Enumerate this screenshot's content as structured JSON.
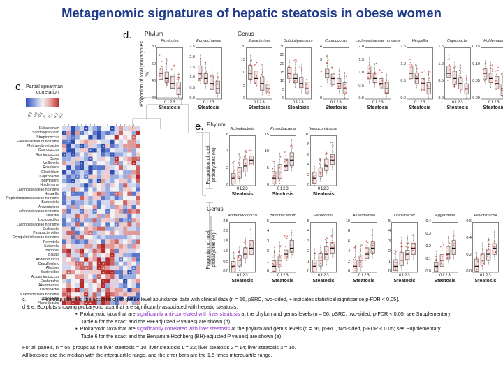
{
  "slide_title": "Metagenomic signatures of hepatic steatosis in obese women",
  "panels": {
    "c": {
      "letter": "c.",
      "legend_title_1": "Partial spearman",
      "legend_title_2": "correlation",
      "scale_ticks": [
        "-0.3",
        "-0.2",
        "-0.1",
        "0",
        "0.1",
        "0.2",
        "0.3"
      ],
      "genera": [
        "Eubacterium",
        "Subdoligranulum",
        "Streptococcus",
        "Faecalibacterium no name",
        "Methanobrevibacter",
        "Coprococcus",
        "Ruminococcus",
        "Dorea",
        "Veillonella",
        "Roseburia",
        "Clostridium",
        "Coprobacter",
        "Butyrivibrio",
        "Holdemania",
        "Lachnospiraceae no name",
        "Hespellia",
        "Peptostreptococcaceae no name",
        "Barnesiella",
        "Anaerostipes",
        "Lachnospiraceae no name",
        "Dialister",
        "Lactobacillus",
        "Lachnospiraceae no name",
        "Collinsella",
        "Parabacteroides",
        "Erysipelotrichaceae no name",
        "Prevotella",
        "Sutterella",
        "Bilophila",
        "Blautia",
        "Anaerotruncus",
        "Desulfovibrio",
        "Alistipes",
        "Bacteroides",
        "Acidaminococcus",
        "Escherichia",
        "Akkermansia",
        "Oscillibacter",
        "Burkholderiales no name",
        "Odoribacter",
        "Flavonifractor"
      ]
    },
    "d": {
      "letter": "d.",
      "phylum_label": "Phylum",
      "genus_label": "Genus",
      "y_label": "Proportion of total prokaryotes (%)",
      "x_label": "Steatosis",
      "x_ticks": "0123",
      "plots": [
        {
          "name": "Firmicutes",
          "ticks": [
            "80",
            "60",
            "40",
            "20"
          ]
        },
        {
          "name": "Euryarchaeota",
          "ticks": [
            "2.5",
            "2.0",
            "1.5",
            "1.0",
            "0.5",
            "0.0"
          ]
        },
        {
          "name": "Eubacterium",
          "ticks": [
            "20",
            "15",
            "10",
            "5",
            "0"
          ]
        },
        {
          "name": "Subdoligranulum",
          "ticks": [
            "30",
            "25",
            "20",
            "15",
            "10",
            "5",
            "0"
          ]
        },
        {
          "name": "Coprococcus",
          "ticks": [
            "4",
            "3",
            "2",
            "1",
            "0"
          ]
        },
        {
          "name": "Lachnospiraceae no name",
          "ticks": [
            "2.0",
            "1.5",
            "1.0",
            "0.5",
            "0.0"
          ]
        },
        {
          "name": "Hespellia",
          "ticks": [
            "1.5",
            "1.0",
            "0.5",
            "0.0"
          ]
        },
        {
          "name": "Coprobacter",
          "ticks": [
            "1.5",
            "1.0",
            "0.5",
            "0.0"
          ]
        },
        {
          "name": "Holdemania",
          "ticks": [
            "0.15",
            "0.10",
            "0.05",
            "0.00"
          ]
        }
      ]
    },
    "e": {
      "letter": "e.",
      "phylum_label": "Phylum",
      "genus_label": "Genus",
      "y_label": "Proportion of total prokaryotes (%)",
      "x_label": "Steatosis",
      "x_ticks": "0123",
      "phylum_plots": [
        {
          "name": "Actinobacteria",
          "ticks": [
            "6",
            "4",
            "2",
            "0"
          ]
        },
        {
          "name": "Proteobacteria",
          "ticks": [
            "15",
            "10",
            "5",
            "0"
          ]
        },
        {
          "name": "Verrucomicrobia",
          "ticks": [
            "10",
            "8",
            "6",
            "4",
            "2",
            "0"
          ]
        }
      ],
      "genus_plots": [
        {
          "name": "Acidaminococcus",
          "ticks": [
            "2.5",
            "2.0",
            "1.5",
            "1.0",
            "0.5",
            "0.0"
          ]
        },
        {
          "name": "Bifidobacterium",
          "ticks": [
            "5",
            "4",
            "3",
            "2",
            "1",
            "0"
          ]
        },
        {
          "name": "Escherichia",
          "ticks": [
            "5",
            "4",
            "3",
            "2",
            "1",
            "0"
          ]
        },
        {
          "name": "Akkermansia",
          "ticks": [
            "10",
            "8",
            "6",
            "4",
            "2",
            "0"
          ]
        },
        {
          "name": "Oscillibacter",
          "ticks": [
            "5",
            "4",
            "3",
            "2",
            "1",
            "0"
          ]
        },
        {
          "name": "Eggerthella",
          "ticks": [
            "0.4",
            "0.3",
            "0.2",
            "0.1",
            "0.0"
          ]
        },
        {
          "name": "Flavonifractor",
          "ticks": [
            "0.6",
            "0.4",
            "0.2",
            "0.0"
          ]
        }
      ]
    }
  },
  "caption": {
    "c_label": "c.",
    "c_text": "Heatmap showing the association of genus-level abundance data with clinical data (n = 56, pSRC, two-sided, + indicates statistical significance p-FDR < 0.05).",
    "de_text": "d & e. Boxplots showing prokaryotic taxa that are significantly associated with hepatic steatosis.",
    "bullet1_pre": "Prokaryotic taxa that are ",
    "bullet1_hl": "significantly anti-correlated with liver steatosis",
    "bullet1_post": " at the phylum and genus levels (n = 56, pSRC, two-sided, p-FDR < 0.05; see Supplementary",
    "bullet1_line2": "Table 6 for the exact and the BH-adjusted P values) are shown (d).",
    "bullet2_pre": "Prokaryotic taxa that are ",
    "bullet2_hl": "significantly correlated with liver steatosis",
    "bullet2_post": " at the phylum and genus levels (n = 56, pSRC, two-sided, p-FDR < 0.05; see Supplementary",
    "bullet2_line2": "Table 6 for the exact and the Benjamini-Hochberg (BH)-adjusted P values) are shown (e).",
    "footer1": "For all panels, n = 56, groups as no liver steatosis = 10; liver steatosis 1 = 22; liver steatosis 2 = 14; liver steatosis 3 = 10.",
    "footer2": "All boxplots are the median with the interquartile range, and the error bars are the 1.5-times interquartile range."
  },
  "colors": {
    "title": "#1f3a8a",
    "highlight": "#8b2cc9",
    "blue": "#3b5bb5",
    "red": "#c0392b",
    "box_fill": "#c0392b"
  }
}
